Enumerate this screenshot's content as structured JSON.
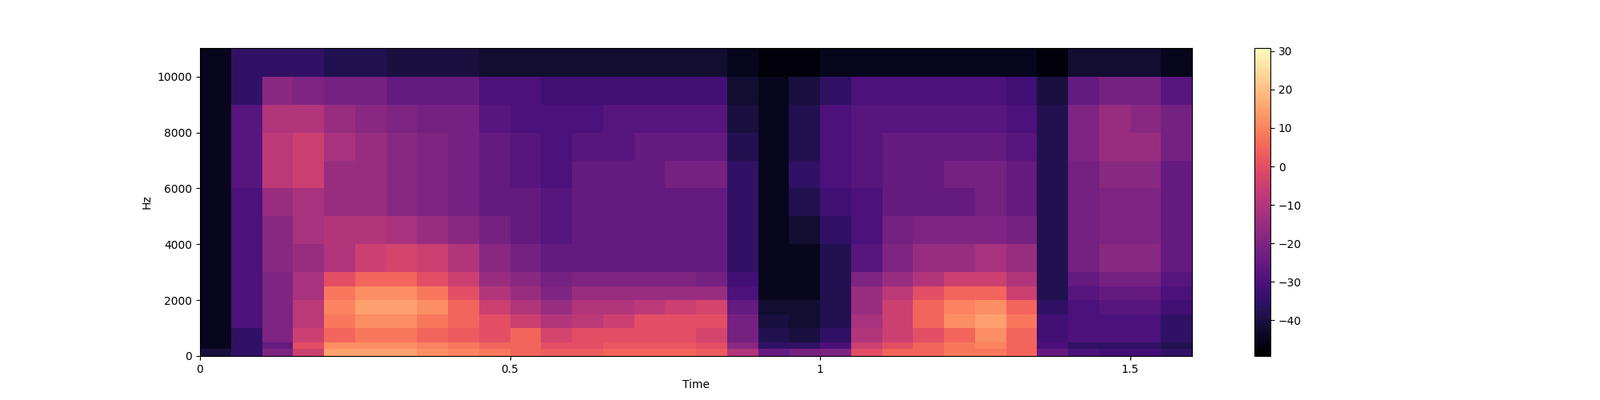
{
  "chart_data": {
    "type": "heatmap",
    "x_label": "Time",
    "y_label": "Hz",
    "xlim": [
      0,
      1.6
    ],
    "xticks": [
      0,
      0.5,
      1,
      1.5
    ],
    "ylim": [
      0,
      11025
    ],
    "yticks": [
      0,
      2000,
      4000,
      6000,
      8000,
      10000
    ],
    "time_edges": [
      0,
      0.05,
      0.1,
      0.15,
      0.2,
      0.25,
      0.3,
      0.35,
      0.4,
      0.45,
      0.5,
      0.55,
      0.6,
      0.65,
      0.7,
      0.75,
      0.8,
      0.85,
      0.9,
      0.95,
      1.0,
      1.05,
      1.1,
      1.15,
      1.2,
      1.25,
      1.3,
      1.35,
      1.4,
      1.45,
      1.5,
      1.55,
      1.6
    ],
    "freq_edges": [
      0,
      250,
      500,
      1000,
      1500,
      2000,
      2500,
      3000,
      4000,
      5000,
      6000,
      7000,
      8000,
      9000,
      10000,
      11025
    ],
    "cells": [
      [
        -40,
        -35,
        -20,
        -5,
        15,
        15,
        15,
        12,
        10,
        8,
        5,
        3,
        3,
        5,
        5,
        5,
        3,
        -10,
        -25,
        -22,
        -20,
        0,
        5,
        5,
        8,
        8,
        5,
        -25,
        -30,
        -32,
        -32,
        -35
      ],
      [
        -45,
        -35,
        -25,
        0,
        12,
        12,
        12,
        10,
        8,
        5,
        5,
        0,
        0,
        2,
        2,
        2,
        0,
        -18,
        -35,
        -35,
        -30,
        -5,
        0,
        5,
        8,
        10,
        5,
        -30,
        -35,
        -35,
        -35,
        -38
      ],
      [
        -45,
        -35,
        -20,
        -5,
        5,
        8,
        8,
        5,
        3,
        0,
        5,
        -3,
        0,
        0,
        0,
        0,
        -3,
        -22,
        -38,
        -40,
        -35,
        -10,
        -5,
        0,
        5,
        12,
        5,
        -32,
        -30,
        -30,
        -30,
        -35
      ],
      [
        -45,
        -30,
        -20,
        -8,
        8,
        12,
        12,
        8,
        5,
        0,
        -5,
        -10,
        -8,
        -5,
        0,
        0,
        0,
        -22,
        -40,
        -42,
        -38,
        -12,
        -5,
        5,
        12,
        15,
        8,
        -32,
        -30,
        -30,
        -30,
        -35
      ],
      [
        -45,
        -30,
        -20,
        -8,
        10,
        15,
        15,
        12,
        5,
        -5,
        -10,
        -15,
        -10,
        -10,
        -8,
        -5,
        -3,
        -25,
        -42,
        -42,
        -38,
        -15,
        -5,
        5,
        10,
        12,
        5,
        -35,
        -30,
        -28,
        -28,
        -32
      ],
      [
        -45,
        -30,
        -20,
        -12,
        8,
        12,
        12,
        8,
        0,
        -10,
        -15,
        -20,
        -15,
        -15,
        -15,
        -15,
        -15,
        -30,
        -45,
        -45,
        -38,
        -15,
        -8,
        0,
        5,
        5,
        -5,
        -38,
        -28,
        -25,
        -25,
        -30
      ],
      [
        -45,
        -30,
        -20,
        -12,
        0,
        5,
        5,
        0,
        -5,
        -15,
        -18,
        -22,
        -20,
        -20,
        -20,
        -20,
        -22,
        -32,
        -45,
        -45,
        -38,
        -20,
        -15,
        -10,
        -5,
        -5,
        -10,
        -38,
        -25,
        -22,
        -22,
        -28
      ],
      [
        -45,
        -30,
        -18,
        -15,
        -10,
        -5,
        -3,
        -5,
        -10,
        -18,
        -22,
        -25,
        -25,
        -25,
        -25,
        -25,
        -25,
        -35,
        -45,
        -45,
        -38,
        -28,
        -20,
        -15,
        -15,
        -12,
        -15,
        -38,
        -22,
        -18,
        -18,
        -25
      ],
      [
        -45,
        -30,
        -18,
        -12,
        -10,
        -10,
        -12,
        -15,
        -18,
        -22,
        -25,
        -28,
        -25,
        -25,
        -25,
        -25,
        -25,
        -35,
        -45,
        -42,
        -35,
        -30,
        -22,
        -20,
        -20,
        -20,
        -22,
        -38,
        -22,
        -20,
        -20,
        -25
      ],
      [
        -45,
        -30,
        -15,
        -12,
        -15,
        -15,
        -18,
        -20,
        -22,
        -25,
        -25,
        -28,
        -25,
        -25,
        -25,
        -25,
        -25,
        -35,
        -45,
        -38,
        -32,
        -30,
        -25,
        -25,
        -25,
        -22,
        -25,
        -38,
        -22,
        -20,
        -20,
        -25
      ],
      [
        -45,
        -28,
        -8,
        -5,
        -15,
        -15,
        -18,
        -20,
        -22,
        -25,
        -28,
        -30,
        -25,
        -25,
        -25,
        -22,
        -22,
        -35,
        -45,
        -35,
        -30,
        -28,
        -25,
        -25,
        -22,
        -22,
        -25,
        -38,
        -22,
        -18,
        -18,
        -25
      ],
      [
        -45,
        -28,
        -8,
        -5,
        -12,
        -15,
        -18,
        -20,
        -22,
        -25,
        -28,
        -30,
        -28,
        -28,
        -25,
        -25,
        -25,
        -38,
        -45,
        -38,
        -30,
        -28,
        -25,
        -25,
        -25,
        -25,
        -28,
        -38,
        -20,
        -15,
        -15,
        -22
      ],
      [
        -45,
        -28,
        -10,
        -10,
        -15,
        -18,
        -20,
        -22,
        -22,
        -28,
        -30,
        -30,
        -30,
        -28,
        -28,
        -28,
        -28,
        -40,
        -45,
        -38,
        -30,
        -28,
        -28,
        -28,
        -28,
        -28,
        -30,
        -38,
        -20,
        -15,
        -18,
        -22
      ],
      [
        -45,
        -35,
        -18,
        -20,
        -22,
        -22,
        -25,
        -25,
        -25,
        -30,
        -30,
        -32,
        -32,
        -32,
        -32,
        -32,
        -32,
        -42,
        -45,
        -40,
        -35,
        -30,
        -30,
        -30,
        -30,
        -30,
        -32,
        -40,
        -25,
        -22,
        -22,
        -28
      ],
      [
        -45,
        -35,
        -35,
        -35,
        -38,
        -38,
        -40,
        -40,
        -40,
        -42,
        -42,
        -42,
        -42,
        -42,
        -42,
        -42,
        -42,
        -45,
        -48,
        -48,
        -45,
        -45,
        -45,
        -45,
        -45,
        -45,
        -45,
        -48,
        -42,
        -42,
        -42,
        -45
      ]
    ],
    "colorbar": {
      "range": [
        -49.3,
        30.8
      ],
      "ticks": [
        {
          "value": -40,
          "label": "−40"
        },
        {
          "value": -30,
          "label": "−30"
        },
        {
          "value": -20,
          "label": "−20"
        },
        {
          "value": -10,
          "label": "−10"
        },
        0,
        10,
        20,
        30
      ]
    }
  }
}
